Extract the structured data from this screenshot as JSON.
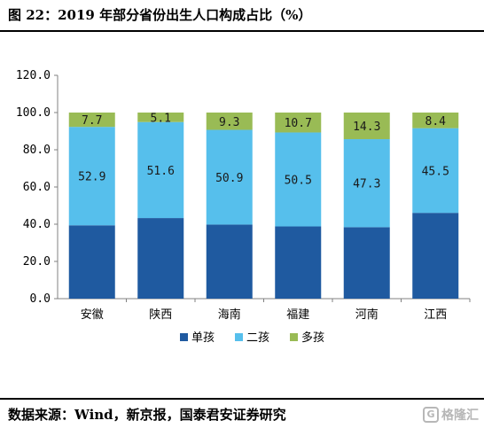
{
  "title": "图 22：2019 年部分省份出生人口构成占比（%）",
  "source": "数据来源：Wind，新京报，国泰君安证券研究",
  "watermark": "格隆汇",
  "colors": {
    "single": "#1f5aa0",
    "second": "#56bfec",
    "multi": "#99bb55"
  },
  "chart_data": {
    "type": "bar",
    "stacked": true,
    "categories": [
      "安徽",
      "陕西",
      "海南",
      "福建",
      "河南",
      "江西"
    ],
    "series": [
      {
        "name": "单孩",
        "values": [
          39.4,
          43.3,
          39.8,
          38.8,
          38.4,
          46.1
        ],
        "labels": [
          "",
          "",
          "",
          "",
          "",
          ""
        ]
      },
      {
        "name": "二孩",
        "values": [
          52.9,
          51.6,
          50.9,
          50.5,
          47.3,
          45.5
        ],
        "labels": [
          "52.9",
          "51.6",
          "50.9",
          "50.5",
          "47.3",
          "45.5"
        ]
      },
      {
        "name": "多孩",
        "values": [
          7.7,
          5.1,
          9.3,
          10.7,
          14.3,
          8.4
        ],
        "labels": [
          "7.7",
          "5.1",
          "9.3",
          "10.7",
          "14.3",
          "8.4"
        ]
      }
    ],
    "ylim": [
      0,
      120
    ],
    "yticks": [
      "0.0",
      "20.0",
      "40.0",
      "60.0",
      "80.0",
      "100.0",
      "120.0"
    ],
    "grid": false,
    "legend": "bottom"
  }
}
